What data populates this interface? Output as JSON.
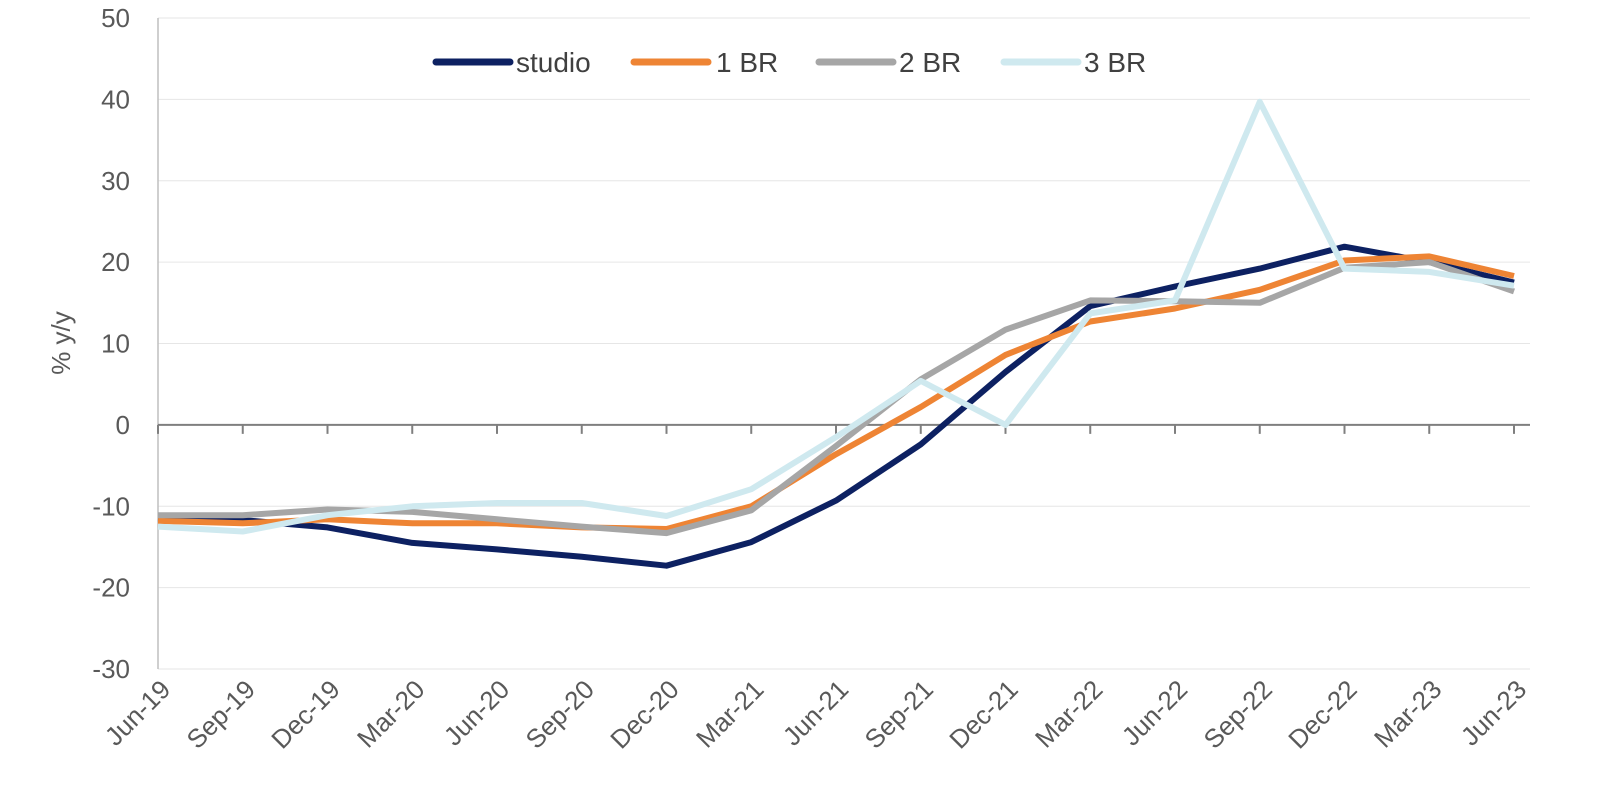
{
  "chart_data": {
    "type": "line",
    "title": "",
    "xlabel": "",
    "ylabel": "% y/y",
    "ylim": [
      -30,
      50
    ],
    "yticks": [
      50,
      40,
      30,
      20,
      10,
      0,
      -10,
      -20,
      -30
    ],
    "grid": true,
    "legend_position": "top-center",
    "x": [
      "Jun-19",
      "Sep-19",
      "Dec-19",
      "Mar-20",
      "Jun-20",
      "Sep-20",
      "Dec-20",
      "Mar-21",
      "Jun-21",
      "Sep-21",
      "Dec-21",
      "Mar-22",
      "Jun-22",
      "Sep-22",
      "Dec-22",
      "Mar-23",
      "Jun-23"
    ],
    "series": [
      {
        "name": "studio",
        "color": "#0d2162",
        "values": [
          -11.5,
          -11.7,
          -12.6,
          -14.5,
          -15.3,
          -16.2,
          -17.3,
          -14.4,
          -9.3,
          -2.4,
          6.5,
          14.6,
          17.0,
          19.2,
          21.9,
          20.0,
          17.5
        ]
      },
      {
        "name": "1 BR",
        "color": "#ee8434",
        "values": [
          -11.8,
          -12.1,
          -11.6,
          -12.1,
          -12.1,
          -12.6,
          -12.8,
          -10.0,
          -3.6,
          2.2,
          8.6,
          12.7,
          14.3,
          16.6,
          20.2,
          20.7,
          18.3
        ]
      },
      {
        "name": "2 BR",
        "color": "#a6a6a6",
        "values": [
          -11.1,
          -11.1,
          -10.4,
          -10.7,
          -11.6,
          -12.5,
          -13.3,
          -10.5,
          -2.6,
          5.6,
          11.7,
          15.3,
          15.2,
          15.0,
          19.3,
          20.0,
          16.4
        ]
      },
      {
        "name": "3 BR",
        "color": "#cfe9ef",
        "values": [
          -12.5,
          -13.1,
          -11.1,
          -10.0,
          -9.6,
          -9.6,
          -11.2,
          -7.9,
          -1.5,
          5.4,
          0.0,
          13.7,
          15.3,
          39.7,
          19.2,
          18.8,
          17.1
        ]
      }
    ]
  }
}
